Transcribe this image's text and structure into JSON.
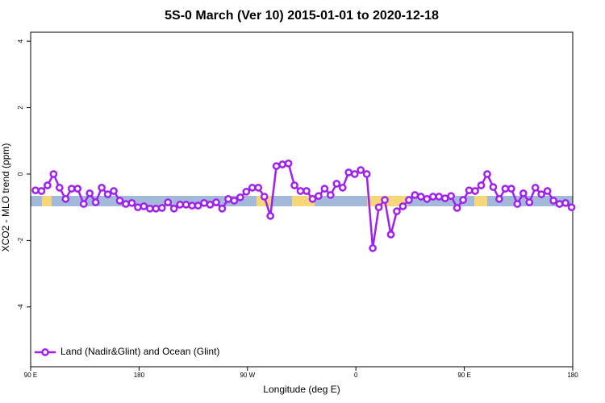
{
  "chart_data": {
    "type": "line",
    "title": "5S-0 March (Ver 10)   2015-01-01 to 2020-12-18",
    "x_label": "Longitude (deg E)",
    "y_label": "XCO2 - MLO trend (ppm)",
    "x": [
      94,
      99,
      104,
      109,
      114,
      119,
      124,
      129,
      134,
      139,
      144,
      149,
      154,
      159,
      164,
      169,
      174,
      179,
      184,
      189,
      194,
      199,
      204,
      209,
      214,
      219,
      224,
      229,
      234,
      239,
      244,
      249,
      254,
      259,
      264,
      269,
      274,
      279,
      284,
      289,
      294,
      299,
      304,
      309,
      314,
      319,
      324,
      329,
      334,
      339,
      344,
      349,
      354,
      359,
      364,
      369,
      374,
      379,
      384,
      389,
      394,
      399,
      404,
      409,
      414,
      419,
      424,
      429,
      434,
      439,
      444,
      449,
      454,
      459,
      464,
      469,
      474,
      479,
      484,
      489,
      494,
      499,
      504,
      509,
      514,
      519,
      524,
      529,
      534,
      539
    ],
    "series": [
      {
        "name": "Land (Nadir&Glint) and Ocean (Glint)",
        "color": "#a020f0",
        "values": [
          -0.49,
          -0.51,
          -0.34,
          0,
          -0.41,
          -0.75,
          -0.44,
          -0.44,
          -0.9,
          -0.58,
          -0.85,
          -0.41,
          -0.61,
          -0.51,
          -0.8,
          -0.9,
          -0.87,
          -1.0,
          -0.97,
          -1.04,
          -1.04,
          -1.02,
          -0.85,
          -1.04,
          -0.92,
          -0.92,
          -0.95,
          -0.95,
          -0.87,
          -0.92,
          -0.85,
          -1.04,
          -0.75,
          -0.8,
          -0.7,
          -0.53,
          -0.41,
          -0.41,
          -0.68,
          -1.26,
          0.24,
          0.29,
          0.32,
          -0.34,
          -0.51,
          -0.51,
          -0.75,
          -0.66,
          -0.44,
          -0.63,
          -0.29,
          -0.41,
          0.05,
          0,
          0.12,
          0,
          -2.23,
          -1.0,
          -0.78,
          -1.82,
          -1.12,
          -0.97,
          -0.78,
          -0.63,
          -0.68,
          -0.75,
          -0.68,
          -0.68,
          -0.73,
          -0.66,
          -1.02,
          -0.78,
          -0.49,
          -0.51,
          -0.34,
          0,
          -0.39,
          -0.75,
          -0.44,
          -0.44,
          -0.9,
          -0.58,
          -0.85,
          -0.41,
          -0.61,
          -0.51,
          -0.8,
          -0.9,
          -0.87,
          -1.0
        ]
      }
    ],
    "xlim": [
      90,
      540
    ],
    "xticks": [
      {
        "value": 90,
        "label": "90 E"
      },
      180,
      {
        "value": 270,
        "label": "90 W"
      },
      {
        "value": 360,
        "label": "0"
      },
      {
        "value": 450,
        "label": "90 E"
      },
      {
        "value": 540,
        "label": "180"
      }
    ],
    "ylim": [
      -5.8,
      4.27
    ],
    "yticks": [
      -4,
      -2,
      0,
      2,
      4
    ],
    "legend": "bottom-left"
  }
}
